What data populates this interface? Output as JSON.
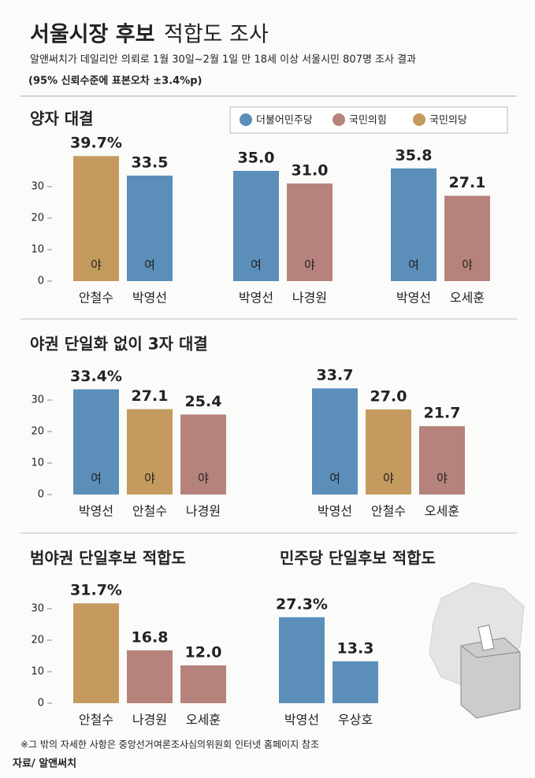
{
  "header": {
    "title_bold": "서울시장 후보",
    "title_light": "적합도 조사",
    "subtitle": "알앤써치가 데일리안 의뢰로 1월 30일~2월 1일 만 18세 이상 서울시민 807명 조사 결과",
    "note": "(95% 신뢰수준에 표본오차 ±3.4%p)"
  },
  "legend": [
    {
      "name": "더불어민주당",
      "color": "#5b8fba"
    },
    {
      "name": "국민의힘",
      "color": "#b5837c"
    },
    {
      "name": "국민의당",
      "color": "#c49a5f"
    }
  ],
  "chart_data": [
    {
      "type": "bar",
      "title": "양자 대결",
      "categories": [
        "안철수",
        "박영선"
      ],
      "values": [
        39.7,
        33.5
      ],
      "value_labels": [
        "39.7%",
        "33.5"
      ],
      "tags": [
        "야",
        "여"
      ],
      "colors": [
        "#c49a5f",
        "#5b8fba"
      ],
      "ylim": [
        0,
        40
      ],
      "yticks": [
        0,
        10,
        20,
        30
      ]
    },
    {
      "type": "bar",
      "categories": [
        "박영선",
        "나경원"
      ],
      "values": [
        35.0,
        31.0
      ],
      "value_labels": [
        "35.0",
        "31.0"
      ],
      "tags": [
        "여",
        "야"
      ],
      "colors": [
        "#5b8fba",
        "#b5837c"
      ],
      "ylim": [
        0,
        40
      ]
    },
    {
      "type": "bar",
      "categories": [
        "박영선",
        "오세훈"
      ],
      "values": [
        35.8,
        27.1
      ],
      "value_labels": [
        "35.8",
        "27.1"
      ],
      "tags": [
        "여",
        "야"
      ],
      "colors": [
        "#5b8fba",
        "#b5837c"
      ],
      "ylim": [
        0,
        40
      ]
    },
    {
      "type": "bar",
      "title": "야권 단일화 없이 3자 대결",
      "categories": [
        "박영선",
        "안철수",
        "나경원"
      ],
      "values": [
        33.4,
        27.1,
        25.4
      ],
      "value_labels": [
        "33.4%",
        "27.1",
        "25.4"
      ],
      "tags": [
        "여",
        "야",
        "야"
      ],
      "colors": [
        "#5b8fba",
        "#c49a5f",
        "#b5837c"
      ],
      "ylim": [
        0,
        40
      ],
      "yticks": [
        0,
        10,
        20,
        30
      ]
    },
    {
      "type": "bar",
      "categories": [
        "박영선",
        "안철수",
        "오세훈"
      ],
      "values": [
        33.7,
        27.0,
        21.7
      ],
      "value_labels": [
        "33.7",
        "27.0",
        "21.7"
      ],
      "tags": [
        "여",
        "야",
        "야"
      ],
      "colors": [
        "#5b8fba",
        "#c49a5f",
        "#b5837c"
      ],
      "ylim": [
        0,
        40
      ]
    },
    {
      "type": "bar",
      "title": "범야권 단일후보 적합도",
      "categories": [
        "안철수",
        "나경원",
        "오세훈"
      ],
      "values": [
        31.7,
        16.8,
        12.0
      ],
      "value_labels": [
        "31.7%",
        "16.8",
        "12.0"
      ],
      "colors": [
        "#c49a5f",
        "#b5837c",
        "#b5837c"
      ],
      "ylim": [
        0,
        40
      ],
      "yticks": [
        0,
        10,
        20,
        30
      ]
    },
    {
      "type": "bar",
      "title": "민주당 단일후보 적합도",
      "categories": [
        "박영선",
        "우상호"
      ],
      "values": [
        27.3,
        13.3
      ],
      "value_labels": [
        "27.3%",
        "13.3"
      ],
      "colors": [
        "#5b8fba",
        "#5b8fba"
      ],
      "ylim": [
        0,
        40
      ]
    }
  ],
  "footer": {
    "note": "※그 밖의 자세한 사항은 중앙선거여론조사심의위원회 인터넷 홈페이지 참조",
    "source": "자료/ 알앤써치"
  }
}
